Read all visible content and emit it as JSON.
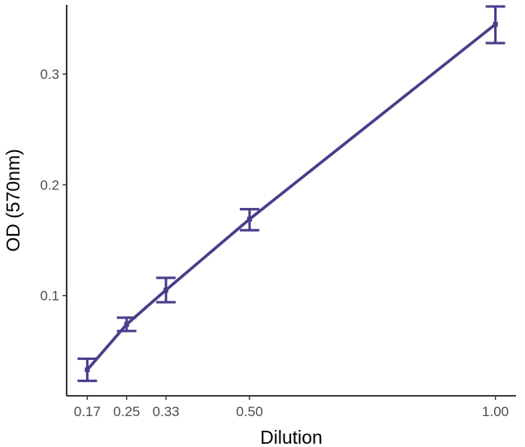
{
  "colors": {
    "series": "#483d8b",
    "axis": "#000000",
    "tick_text": "#4d4d4d",
    "background": "#ffffff"
  },
  "chart_data": {
    "type": "line",
    "title": "",
    "xlabel": "Dilution",
    "ylabel": "OD (570nm)",
    "grid": false,
    "legend": "none",
    "xlim": [
      0.128,
      1.042
    ],
    "ylim": [
      0.0095,
      0.3625
    ],
    "x_ticks": [
      0.17,
      0.25,
      0.33,
      0.5,
      1.0
    ],
    "x_tick_labels": [
      "0.17",
      "0.25",
      "0.33",
      "0.50",
      "1.00"
    ],
    "y_ticks": [
      0.1,
      0.2,
      0.3
    ],
    "y_tick_labels": [
      "0.1",
      "0.2",
      "0.3"
    ],
    "series": [
      {
        "x": [
          0.17,
          0.25,
          0.33,
          0.5,
          1.0
        ],
        "values": [
          0.033,
          0.074,
          0.105,
          0.169,
          0.345
        ],
        "err_low": [
          0.023,
          0.068,
          0.094,
          0.159,
          0.328
        ],
        "err_high": [
          0.043,
          0.08,
          0.116,
          0.178,
          0.361
        ]
      }
    ]
  }
}
